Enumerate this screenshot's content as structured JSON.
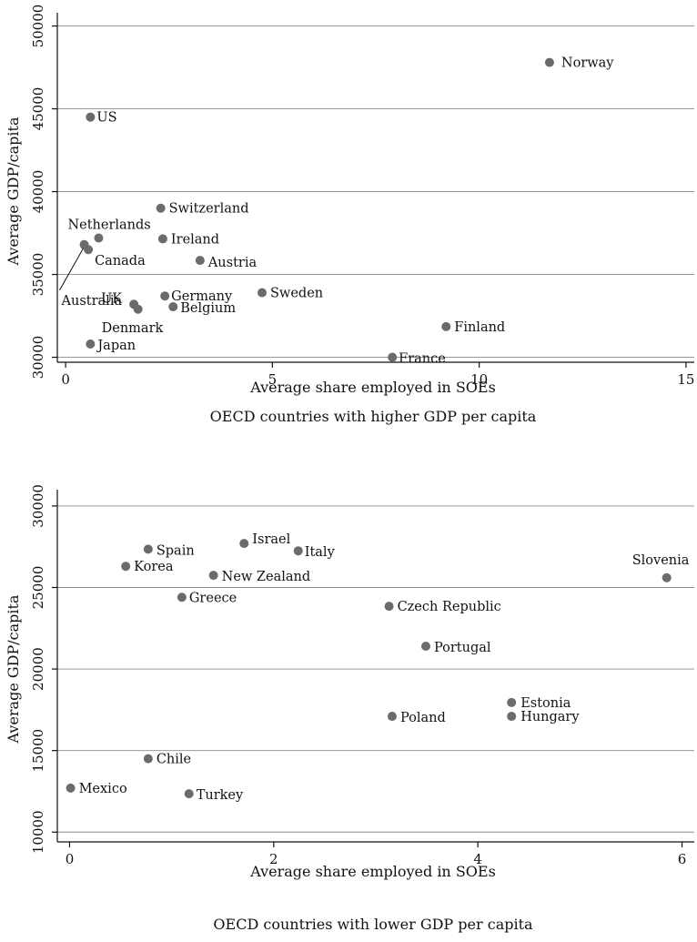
{
  "chart_data": [
    {
      "type": "scatter",
      "caption": "OECD countries with higher GDP per capita",
      "xlabel": "Average share employed in SOEs",
      "ylabel": "Average GDP/capita",
      "xlim": [
        -0.2,
        15.2
      ],
      "ylim": [
        29700,
        50800
      ],
      "xticks": [
        0,
        5,
        10,
        15
      ],
      "yticks": [
        30000,
        35000,
        40000,
        45000,
        50000
      ],
      "grid": true,
      "points": [
        {
          "label": "Norway",
          "x": 11.7,
          "y": 47800
        },
        {
          "label": "US",
          "x": 0.6,
          "y": 44500
        },
        {
          "label": "Switzerland",
          "x": 2.3,
          "y": 39000
        },
        {
          "label": "Netherlands",
          "x": 0.8,
          "y": 37200
        },
        {
          "label": "Ireland",
          "x": 2.35,
          "y": 37150
        },
        {
          "label": "Canada",
          "x": 0.55,
          "y": 36500
        },
        {
          "label": "Australia",
          "x": 0.45,
          "y": 36800
        },
        {
          "label": "Austria",
          "x": 3.25,
          "y": 35850
        },
        {
          "label": "Sweden",
          "x": 4.75,
          "y": 33900
        },
        {
          "label": "Germany",
          "x": 2.4,
          "y": 33700
        },
        {
          "label": "UK",
          "x": 1.65,
          "y": 33200
        },
        {
          "label": "Belgium",
          "x": 2.6,
          "y": 33050
        },
        {
          "label": "Denmark",
          "x": 1.75,
          "y": 32900
        },
        {
          "label": "Finland",
          "x": 9.2,
          "y": 31850
        },
        {
          "label": "Japan",
          "x": 0.6,
          "y": 30800
        },
        {
          "label": "France",
          "x": 7.9,
          "y": 30000
        }
      ]
    },
    {
      "type": "scatter",
      "caption": "OECD countries with lower GDP per capita",
      "xlabel": "Average share employed in SOEs",
      "ylabel": "Average GDP/capita",
      "xlim": [
        -0.12,
        6.12
      ],
      "ylim": [
        9400,
        31000
      ],
      "xticks": [
        0,
        2,
        4,
        6
      ],
      "yticks": [
        10000,
        15000,
        20000,
        25000,
        30000
      ],
      "grid": true,
      "points": [
        {
          "label": "Israel",
          "x": 1.71,
          "y": 27700
        },
        {
          "label": "Spain",
          "x": 0.77,
          "y": 27350
        },
        {
          "label": "Italy",
          "x": 2.24,
          "y": 27250
        },
        {
          "label": "Korea",
          "x": 0.55,
          "y": 26300
        },
        {
          "label": "New Zealand",
          "x": 1.41,
          "y": 25750
        },
        {
          "label": "Slovenia",
          "x": 5.85,
          "y": 25600
        },
        {
          "label": "Greece",
          "x": 1.1,
          "y": 24400
        },
        {
          "label": "Czech Republic",
          "x": 3.13,
          "y": 23850
        },
        {
          "label": "Portugal",
          "x": 3.49,
          "y": 21400
        },
        {
          "label": "Estonia",
          "x": 4.33,
          "y": 17950
        },
        {
          "label": "Poland",
          "x": 3.16,
          "y": 17100
        },
        {
          "label": "Hungary",
          "x": 4.33,
          "y": 17100
        },
        {
          "label": "Chile",
          "x": 0.77,
          "y": 14500
        },
        {
          "label": "Mexico",
          "x": 0.01,
          "y": 12700
        },
        {
          "label": "Turkey",
          "x": 1.17,
          "y": 12350
        }
      ]
    }
  ]
}
